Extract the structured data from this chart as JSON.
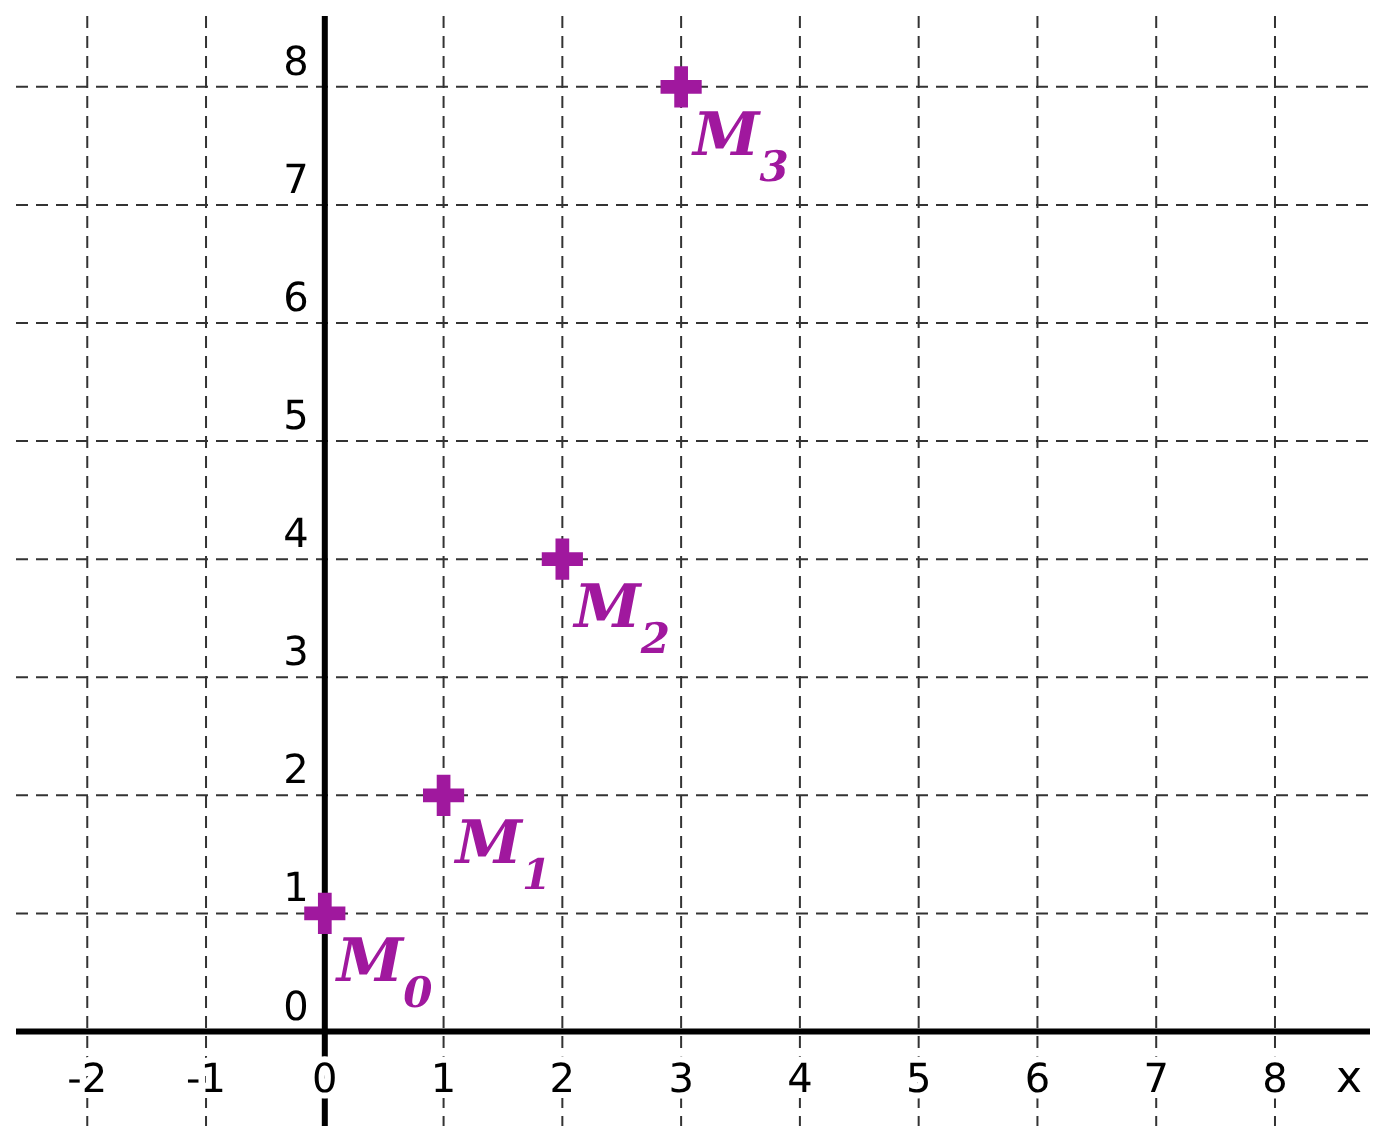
{
  "chart_data": {
    "type": "scatter",
    "xlabel": "x",
    "x": [
      0,
      1,
      2,
      3
    ],
    "series": [
      {
        "color": "#a0189e",
        "values": [
          1,
          2,
          4,
          8
        ]
      }
    ],
    "marker": "cross",
    "grid": true,
    "xlim": [
      -2.6,
      8.8
    ],
    "ylim": [
      -0.8,
      8.6
    ],
    "xticks": [
      -2,
      -1,
      0,
      1,
      2,
      3,
      4,
      5,
      6,
      7,
      8
    ],
    "yticks": [
      0,
      1,
      2,
      3,
      4,
      5,
      6,
      7,
      8
    ],
    "annotations": [
      {
        "text": "M$_{0}$",
        "x": 0,
        "y": 1
      },
      {
        "text": "M$_{1}$",
        "x": 1,
        "y": 2
      },
      {
        "text": "M$_{2}$",
        "x": 2,
        "y": 4
      },
      {
        "text": "M$_{3}$",
        "x": 3,
        "y": 8
      }
    ]
  }
}
